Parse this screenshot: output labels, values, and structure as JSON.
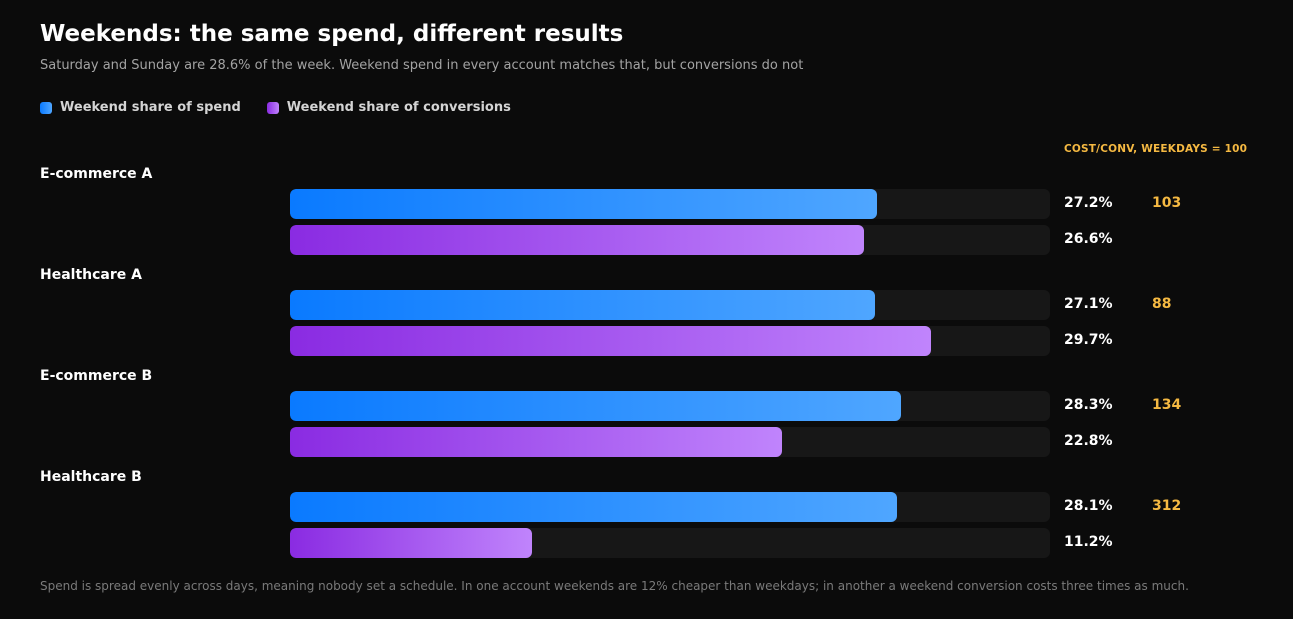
{
  "header": {
    "title": "Weekends: the same spend, different results",
    "subtitle": "Saturday and Sunday are 28.6% of the week. Weekend spend in every account matches that, but conversions do not"
  },
  "legend": {
    "spend_label": "Weekend share of spend",
    "conversions_label": "Weekend share of conversions"
  },
  "metric_header": "COST/CONV, WEEKDAYS = 100",
  "footnote": "Spend is spread evenly across days, meaning nobody set a schedule. In one account weekends are 12% cheaper than weekdays; in another a weekend conversion costs three times as much.",
  "colors": {
    "background": "#0b0b0b",
    "track": "#171717",
    "spend_start": "#0a7aff",
    "spend_end": "#4fa6ff",
    "conv_start": "#8a2be2",
    "conv_end": "#c084fc",
    "accent": "#f5b942"
  },
  "chart_data": {
    "type": "bar",
    "orientation": "horizontal",
    "title": "Weekends: the same spend, different results",
    "subtitle": "Saturday and Sunday are 28.6% of the week. Weekend spend in every account matches that, but conversions do not",
    "categories": [
      "E-commerce A",
      "Healthcare A",
      "E-commerce B",
      "Healthcare B"
    ],
    "series": [
      {
        "name": "Weekend share of spend",
        "values": [
          27.2,
          27.1,
          28.3,
          28.1
        ],
        "labels": [
          "27.2%",
          "27.1%",
          "28.3%",
          "28.1%"
        ]
      },
      {
        "name": "Weekend share of conversions",
        "values": [
          26.6,
          29.7,
          22.8,
          11.2
        ],
        "labels": [
          "26.6%",
          "29.7%",
          "22.8%",
          "11.2%"
        ]
      }
    ],
    "cost_per_conversion_index": {
      "label": "COST/CONV, WEEKDAYS = 100",
      "values": [
        103,
        88,
        134,
        312
      ],
      "labels": [
        "103",
        "88",
        "134",
        "312"
      ]
    },
    "xlim": [
      0,
      35.2
    ],
    "grid": false,
    "legend_position": "top-left"
  }
}
